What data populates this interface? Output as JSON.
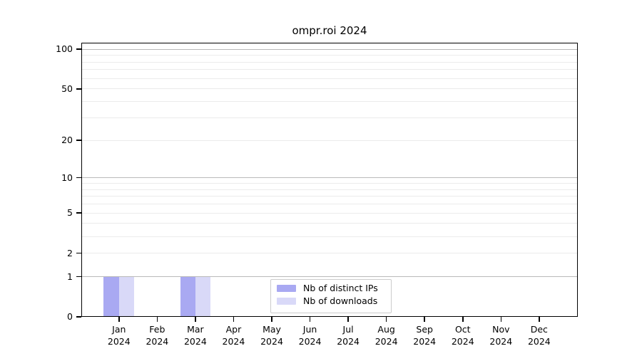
{
  "figure": {
    "background": "#ffffff"
  },
  "chart_data": {
    "type": "bar",
    "title": "ompr.roi 2024",
    "x": {
      "categories": [
        "Jan",
        "Feb",
        "Mar",
        "Apr",
        "May",
        "Jun",
        "Jul",
        "Aug",
        "Sep",
        "Oct",
        "Nov",
        "Dec"
      ],
      "year_label": "2024"
    },
    "series": [
      {
        "name": "Nb of distinct IPs",
        "color": "#a9a9f2",
        "values": [
          1,
          0,
          1,
          0,
          0,
          0,
          0,
          0,
          0,
          0,
          0,
          0
        ]
      },
      {
        "name": "Nb of downloads",
        "color": "#d9d9f8",
        "values": [
          1,
          0,
          1,
          0,
          0,
          0,
          0,
          0,
          0,
          0,
          0,
          0
        ]
      }
    ],
    "y_axis": {
      "scale": "log1p",
      "min": 0,
      "max": 112,
      "tick_values": [
        0,
        1,
        2,
        5,
        10,
        20,
        50,
        100
      ],
      "major_gridlines": [
        1,
        10,
        100
      ],
      "minor_gridlines": [
        2,
        3,
        4,
        5,
        6,
        7,
        8,
        9,
        20,
        30,
        40,
        50,
        60,
        70,
        80,
        90
      ]
    },
    "legend": {
      "position": "lower center"
    },
    "grid": true
  }
}
